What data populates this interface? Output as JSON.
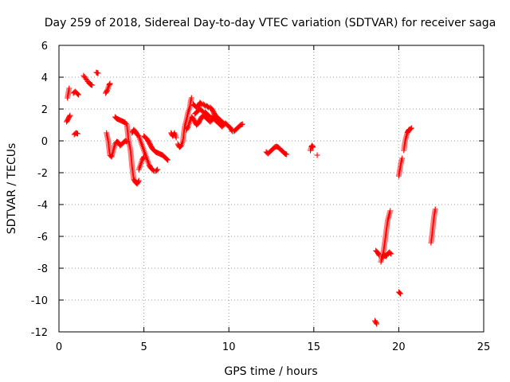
{
  "chart_data": {
    "type": "scatter",
    "title": "Day 259 of 2018, Sidereal Day-to-day VTEC variation (SDTVAR) for receiver saga",
    "xlabel": "GPS time / hours",
    "ylabel": "SDTVAR / TECUs",
    "xlim": [
      0,
      25
    ],
    "ylim": [
      -12,
      6
    ],
    "xticks": [
      0,
      5,
      10,
      15,
      20,
      25
    ],
    "yticks": [
      -12,
      -10,
      -8,
      -6,
      -4,
      -2,
      0,
      2,
      4,
      6
    ],
    "xtick_labels": [
      "0",
      "5",
      "10",
      "15",
      "20",
      "25"
    ],
    "ytick_labels": [
      "-12",
      "-10",
      "-8",
      "-6",
      "-4",
      "-2",
      "0",
      "2",
      "4",
      "6"
    ],
    "grid": true,
    "marker": "+",
    "color": "#ff0000",
    "series_polylines": [
      [
        [
          0.45,
          1.2
        ],
        [
          0.55,
          1.4
        ],
        [
          0.65,
          1.6
        ]
      ],
      [
        [
          0.5,
          2.7
        ],
        [
          0.55,
          3.0
        ],
        [
          0.6,
          3.3
        ]
      ],
      [
        [
          0.85,
          3.0
        ],
        [
          0.95,
          3.1
        ],
        [
          1.05,
          3.0
        ],
        [
          1.15,
          2.9
        ]
      ],
      [
        [
          0.9,
          0.4
        ],
        [
          1.0,
          0.5
        ],
        [
          1.1,
          0.45
        ]
      ],
      [
        [
          1.45,
          4.1
        ],
        [
          1.55,
          3.95
        ],
        [
          1.65,
          3.8
        ],
        [
          1.75,
          3.65
        ],
        [
          1.85,
          3.55
        ],
        [
          1.95,
          3.5
        ]
      ],
      [
        [
          2.2,
          4.3
        ],
        [
          2.3,
          4.25
        ]
      ],
      [
        [
          2.75,
          3.0
        ],
        [
          2.85,
          3.2
        ],
        [
          2.95,
          3.5
        ],
        [
          3.0,
          3.6
        ]
      ],
      [
        [
          2.8,
          0.5
        ],
        [
          2.9,
          0.0
        ],
        [
          2.95,
          -0.5
        ],
        [
          3.0,
          -0.9
        ],
        [
          3.1,
          -1.0
        ],
        [
          3.2,
          -0.6
        ],
        [
          3.3,
          -0.2
        ],
        [
          3.4,
          -0.05
        ],
        [
          3.5,
          -0.1
        ],
        [
          3.6,
          -0.3
        ],
        [
          3.7,
          -0.2
        ],
        [
          3.8,
          -0.1
        ],
        [
          3.9,
          0.0
        ],
        [
          4.0,
          -0.05
        ]
      ],
      [
        [
          3.3,
          1.5
        ],
        [
          3.4,
          1.4
        ],
        [
          3.5,
          1.35
        ],
        [
          3.6,
          1.3
        ],
        [
          3.7,
          1.25
        ],
        [
          3.8,
          1.2
        ],
        [
          3.9,
          1.15
        ],
        [
          4.0,
          1.0
        ],
        [
          4.05,
          0.5
        ],
        [
          4.1,
          0.0
        ],
        [
          4.2,
          -0.5
        ],
        [
          4.25,
          -1.0
        ],
        [
          4.3,
          -1.6
        ],
        [
          4.35,
          -2.0
        ],
        [
          4.4,
          -2.4
        ],
        [
          4.5,
          -2.6
        ],
        [
          4.6,
          -2.7
        ],
        [
          4.7,
          -2.5
        ]
      ],
      [
        [
          4.3,
          0.5
        ],
        [
          4.4,
          0.7
        ],
        [
          4.5,
          0.6
        ],
        [
          4.6,
          0.4
        ],
        [
          4.7,
          0.3
        ],
        [
          4.8,
          0.0
        ],
        [
          4.9,
          -0.3
        ],
        [
          5.0,
          -0.6
        ],
        [
          5.1,
          -0.9
        ],
        [
          5.2,
          -1.2
        ],
        [
          5.3,
          -1.5
        ],
        [
          5.4,
          -1.7
        ],
        [
          5.5,
          -1.8
        ],
        [
          5.6,
          -1.9
        ],
        [
          5.7,
          -1.9
        ],
        [
          5.8,
          -1.8
        ]
      ],
      [
        [
          4.7,
          -1.8
        ],
        [
          4.8,
          -1.5
        ],
        [
          4.9,
          -1.2
        ],
        [
          5.0,
          -1.0
        ]
      ],
      [
        [
          5.0,
          0.3
        ],
        [
          5.1,
          0.2
        ],
        [
          5.2,
          0.1
        ],
        [
          5.3,
          -0.1
        ],
        [
          5.4,
          -0.3
        ],
        [
          5.5,
          -0.5
        ],
        [
          5.6,
          -0.6
        ],
        [
          5.7,
          -0.7
        ],
        [
          5.8,
          -0.75
        ],
        [
          5.9,
          -0.8
        ],
        [
          6.0,
          -0.85
        ],
        [
          6.1,
          -0.9
        ],
        [
          6.2,
          -1.0
        ],
        [
          6.3,
          -1.1
        ],
        [
          6.4,
          -1.2
        ]
      ],
      [
        [
          6.6,
          0.5
        ],
        [
          6.7,
          0.3
        ],
        [
          6.8,
          0.5
        ],
        [
          6.9,
          0.2
        ]
      ],
      [
        [
          7.0,
          -0.2
        ],
        [
          7.1,
          -0.4
        ],
        [
          7.2,
          -0.3
        ],
        [
          7.3,
          0.0
        ],
        [
          7.35,
          0.5
        ],
        [
          7.4,
          0.9
        ],
        [
          7.5,
          1.3
        ],
        [
          7.6,
          1.8
        ],
        [
          7.7,
          2.1
        ],
        [
          7.75,
          2.5
        ],
        [
          7.8,
          2.7
        ]
      ],
      [
        [
          7.5,
          0.7
        ],
        [
          7.6,
          0.9
        ],
        [
          7.7,
          1.2
        ],
        [
          7.8,
          1.5
        ],
        [
          7.9,
          1.4
        ],
        [
          8.0,
          1.2
        ],
        [
          8.1,
          1.0
        ],
        [
          8.2,
          1.1
        ],
        [
          8.3,
          1.3
        ],
        [
          8.4,
          1.5
        ],
        [
          8.5,
          1.6
        ],
        [
          8.6,
          1.5
        ],
        [
          8.7,
          1.4
        ],
        [
          8.8,
          1.3
        ],
        [
          8.9,
          1.2
        ],
        [
          9.0,
          1.3
        ],
        [
          9.1,
          1.4
        ],
        [
          9.2,
          1.3
        ],
        [
          9.3,
          1.2
        ],
        [
          9.4,
          1.1
        ],
        [
          9.5,
          1.0
        ],
        [
          9.6,
          0.9
        ],
        [
          9.7,
          1.0
        ],
        [
          9.8,
          1.1
        ],
        [
          9.9,
          1.0
        ],
        [
          10.0,
          0.9
        ],
        [
          10.1,
          0.8
        ],
        [
          10.2,
          0.6
        ],
        [
          10.3,
          0.6
        ],
        [
          10.4,
          0.7
        ],
        [
          10.5,
          0.8
        ],
        [
          10.6,
          0.9
        ],
        [
          10.7,
          1.0
        ],
        [
          10.8,
          1.05
        ]
      ],
      [
        [
          7.9,
          2.3
        ],
        [
          8.0,
          2.2
        ],
        [
          8.1,
          2.1
        ],
        [
          8.2,
          2.2
        ],
        [
          8.3,
          2.4
        ],
        [
          8.4,
          2.3
        ],
        [
          8.5,
          2.3
        ],
        [
          8.6,
          2.2
        ],
        [
          8.7,
          2.2
        ],
        [
          8.8,
          2.1
        ],
        [
          8.9,
          2.1
        ],
        [
          9.0,
          2.0
        ],
        [
          9.1,
          1.8
        ],
        [
          9.2,
          1.6
        ],
        [
          9.3,
          1.5
        ],
        [
          9.4,
          1.4
        ],
        [
          9.5,
          1.3
        ],
        [
          9.6,
          1.2
        ],
        [
          9.7,
          1.1
        ],
        [
          9.8,
          1.1
        ],
        [
          9.9,
          1.0
        ]
      ],
      [
        [
          8.0,
          1.7
        ],
        [
          8.1,
          1.8
        ],
        [
          8.2,
          1.9
        ],
        [
          8.3,
          2.0
        ],
        [
          8.4,
          1.9
        ],
        [
          8.5,
          1.8
        ],
        [
          8.6,
          1.8
        ],
        [
          8.7,
          1.7
        ],
        [
          8.8,
          1.6
        ],
        [
          8.9,
          1.5
        ],
        [
          9.0,
          1.5
        ],
        [
          9.1,
          1.4
        ],
        [
          9.2,
          1.3
        ],
        [
          9.3,
          1.2
        ],
        [
          9.4,
          1.2
        ],
        [
          9.5,
          1.1
        ]
      ],
      [
        [
          12.2,
          -0.7
        ],
        [
          12.3,
          -0.8
        ],
        [
          12.4,
          -0.7
        ],
        [
          12.5,
          -0.6
        ],
        [
          12.6,
          -0.5
        ],
        [
          12.7,
          -0.4
        ],
        [
          12.8,
          -0.35
        ],
        [
          12.9,
          -0.4
        ],
        [
          13.0,
          -0.5
        ],
        [
          13.1,
          -0.6
        ],
        [
          13.2,
          -0.7
        ],
        [
          13.3,
          -0.8
        ],
        [
          13.4,
          -0.85
        ]
      ],
      [
        [
          14.8,
          -0.6
        ],
        [
          14.85,
          -0.4
        ],
        [
          14.9,
          -0.3
        ],
        [
          14.95,
          -0.4
        ]
      ],
      [
        [
          15.2,
          -0.9
        ]
      ],
      [
        [
          18.65,
          -6.9
        ],
        [
          18.75,
          -7.0
        ],
        [
          18.85,
          -7.2
        ]
      ],
      [
        [
          18.6,
          -11.3
        ],
        [
          18.7,
          -11.5
        ]
      ],
      [
        [
          18.95,
          -7.6
        ],
        [
          19.0,
          -7.4
        ],
        [
          19.05,
          -7.2
        ],
        [
          19.1,
          -7.0
        ],
        [
          19.15,
          -6.6
        ],
        [
          19.2,
          -6.2
        ],
        [
          19.25,
          -5.8
        ],
        [
          19.3,
          -5.4
        ],
        [
          19.35,
          -5.0
        ],
        [
          19.4,
          -4.8
        ],
        [
          19.45,
          -4.6
        ],
        [
          19.5,
          -4.4
        ]
      ],
      [
        [
          19.05,
          -7.3
        ],
        [
          19.15,
          -7.2
        ],
        [
          19.25,
          -7.25
        ],
        [
          19.35,
          -7.1
        ],
        [
          19.45,
          -7.0
        ],
        [
          19.55,
          -7.1
        ]
      ],
      [
        [
          20.0,
          -9.5
        ],
        [
          20.1,
          -9.6
        ]
      ],
      [
        [
          20.0,
          -2.2
        ],
        [
          20.05,
          -1.9
        ],
        [
          20.1,
          -1.6
        ],
        [
          20.15,
          -1.3
        ],
        [
          20.2,
          -1.1
        ]
      ],
      [
        [
          20.3,
          -0.6
        ],
        [
          20.35,
          -0.2
        ],
        [
          20.4,
          0.1
        ],
        [
          20.45,
          0.3
        ],
        [
          20.5,
          0.5
        ],
        [
          20.55,
          0.6
        ],
        [
          20.6,
          0.7
        ],
        [
          20.7,
          0.75
        ],
        [
          20.75,
          0.8
        ]
      ],
      [
        [
          21.9,
          -6.4
        ],
        [
          21.95,
          -6.0
        ],
        [
          22.0,
          -5.5
        ],
        [
          22.05,
          -5.0
        ],
        [
          22.1,
          -4.6
        ],
        [
          22.15,
          -4.3
        ]
      ]
    ]
  }
}
